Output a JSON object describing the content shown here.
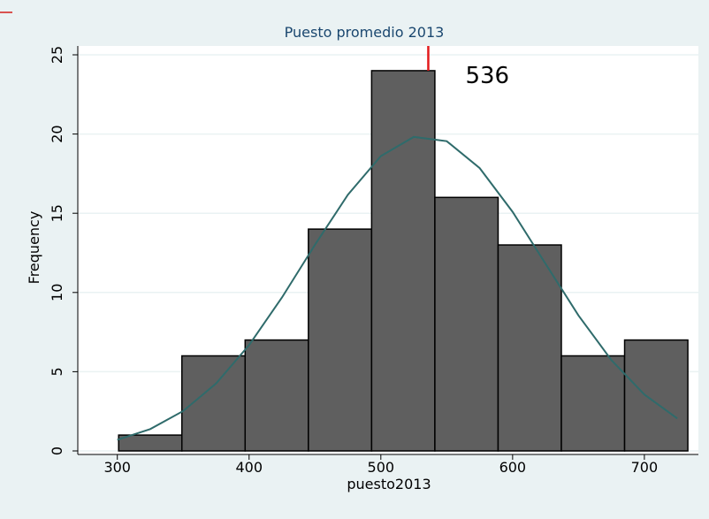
{
  "chart_data": {
    "type": "histogram",
    "title": "Puesto promedio 2013",
    "x_label": "puesto2013",
    "y_label": "Frequency",
    "bins": [
      301,
      349,
      397,
      445,
      493,
      541,
      589,
      637,
      685,
      733
    ],
    "values": [
      1,
      6,
      7,
      14,
      24,
      16,
      13,
      6,
      7
    ],
    "color": "#5f5f5f",
    "xlim": [
      270,
      741
    ],
    "xticks": [
      300,
      400,
      500,
      600,
      700
    ],
    "ylim": [
      0,
      25
    ],
    "yticks": [
      0,
      5,
      10,
      15,
      20,
      25
    ],
    "grid": true,
    "curve": {
      "color": "#2f6b6b",
      "x": [
        300,
        325,
        350,
        375,
        400,
        425,
        450,
        475,
        500,
        525,
        550,
        575,
        600,
        625,
        650,
        675,
        700,
        725
      ],
      "values": [
        0.7,
        1.38,
        2.52,
        4.26,
        6.68,
        9.69,
        13.01,
        16.17,
        18.61,
        19.82,
        19.55,
        17.85,
        15.09,
        11.81,
        8.55,
        5.73,
        3.56,
        2.05
      ]
    },
    "reference_line": {
      "value": 536,
      "color": "#e31a1c"
    }
  }
}
